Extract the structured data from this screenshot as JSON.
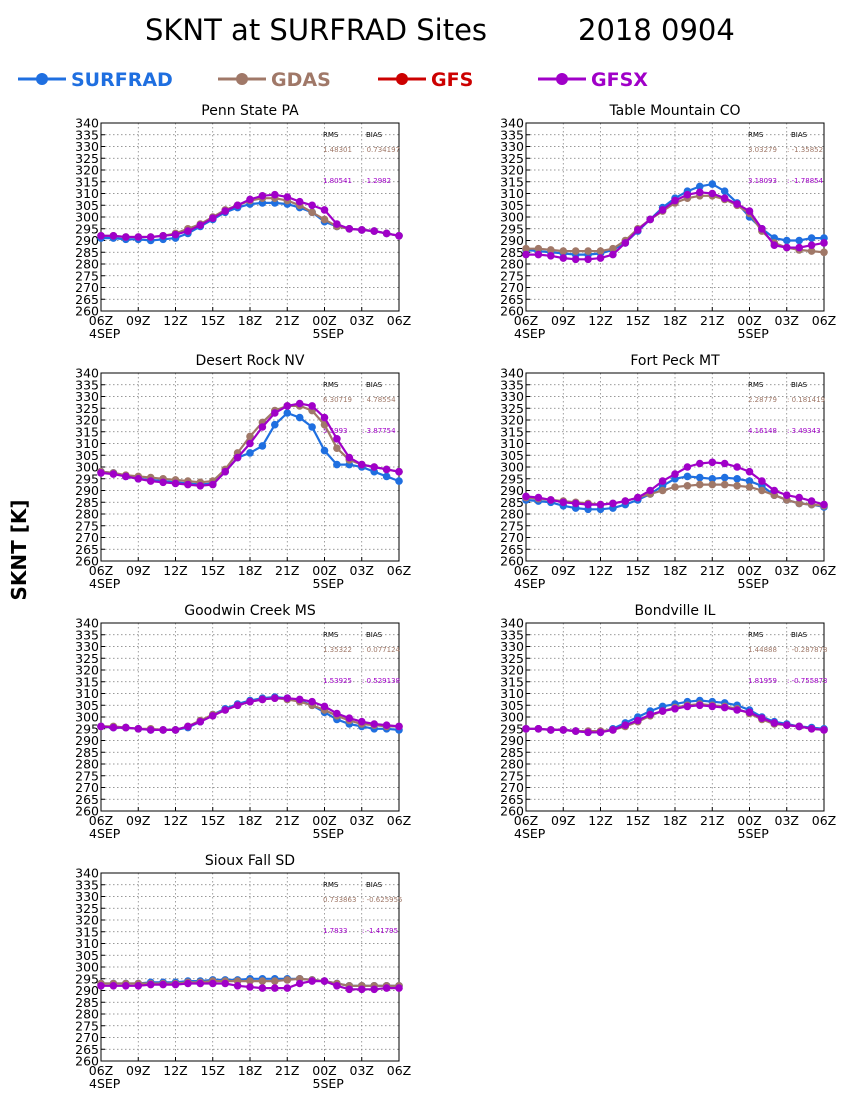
{
  "title": "SKNT at SURFRAD Sites",
  "date": "2018 0904",
  "ylabel": "SKNT [K]",
  "legend": [
    {
      "name": "SURFRAD",
      "color": "#1f6fe0"
    },
    {
      "name": "GDAS",
      "color": "#a07868"
    },
    {
      "name": "GFS",
      "color": "#cc0000"
    },
    {
      "name": "GFSX",
      "color": "#a000c8"
    }
  ],
  "stats_header": {
    "rms": "RMS",
    "bias": "BIAS"
  },
  "chart_data": {
    "type": "line",
    "ylim": [
      260,
      340
    ],
    "yticks": [
      "260",
      "265",
      "270",
      "275",
      "280",
      "285",
      "290",
      "295",
      "300",
      "305",
      "310",
      "315",
      "320",
      "325",
      "330",
      "335",
      "340"
    ],
    "xticks": [
      "06Z",
      "09Z",
      "12Z",
      "15Z",
      "18Z",
      "21Z",
      "00Z",
      "03Z",
      "06Z"
    ],
    "xday_labels": [
      "4SEP",
      "5SEP"
    ],
    "grid": true,
    "x_hours": [
      0,
      1,
      2,
      3,
      4,
      5,
      6,
      7,
      8,
      9,
      10,
      11,
      12,
      13,
      14,
      15,
      16,
      17,
      18,
      19,
      20,
      21,
      22,
      23,
      24
    ],
    "panels": [
      {
        "title": "Penn State PA",
        "stats": [
          {
            "rms": "1.48301",
            "bias": "0.734197",
            "color": "#a07868"
          },
          {
            "rms": "1.80541",
            "bias": "1.2982",
            "color": "#a000c8"
          }
        ],
        "series": [
          {
            "name": "SURFRAD",
            "values": [
              291,
              291,
              290.5,
              290.5,
              290,
              290.5,
              291,
              293,
              296,
              299,
              302,
              304,
              305.5,
              306,
              306,
              305.5,
              304,
              302,
              298,
              296,
              295,
              294.5,
              294,
              293,
              292
            ]
          },
          {
            "name": "GDAS",
            "values": [
              292,
              292,
              291.5,
              291.5,
              291.5,
              292,
              293,
              295,
              297,
              300,
              303,
              305,
              307,
              308,
              308,
              307,
              305,
              302,
              299,
              296,
              295,
              294.5,
              294,
              293,
              292
            ]
          },
          {
            "name": "GFSX",
            "values": [
              292,
              292,
              291.5,
              291.5,
              291.5,
              292,
              292.5,
              294,
              296.5,
              299.5,
              302.5,
              305,
              307.5,
              309,
              309.5,
              308.5,
              306.5,
              305,
              303,
              297,
              295,
              294.5,
              294,
              293,
              292
            ]
          }
        ]
      },
      {
        "title": "Table Mountain CO",
        "stats": [
          {
            "rms": "3.03279",
            "bias": "-1.35852",
            "color": "#a07868"
          },
          {
            "rms": "3.18093",
            "bias": "-1.78854",
            "color": "#a000c8"
          }
        ],
        "series": [
          {
            "name": "SURFRAD",
            "values": [
              286,
              285.5,
              285,
              284.5,
              284,
              284,
              284.5,
              286,
              289,
              294,
              299,
              304,
              308,
              311,
              313,
              314,
              311,
              306,
              300,
              295,
              291,
              290,
              290,
              291,
              291
            ]
          },
          {
            "name": "GDAS",
            "values": [
              286.5,
              286.5,
              286,
              285.5,
              285.5,
              285.5,
              285.5,
              286.5,
              290,
              295,
              299,
              302.5,
              306,
              308,
              309,
              309,
              307.5,
              305,
              301.5,
              294,
              289,
              287,
              286,
              285.5,
              285
            ]
          },
          {
            "name": "GFSX",
            "values": [
              284,
              284,
              283.5,
              282.5,
              282,
              282,
              282.5,
              284,
              289,
              294.5,
              299,
              303,
              307,
              309.5,
              310.5,
              310,
              308,
              305.5,
              302.5,
              295,
              288,
              287,
              287,
              288,
              289
            ]
          }
        ]
      },
      {
        "title": "Desert Rock NV",
        "stats": [
          {
            "rms": "6.30719",
            "bias": "4.78554",
            "color": "#a07868"
          },
          {
            "rms": "5.5993",
            "bias": "3.87754",
            "color": "#a000c8"
          }
        ],
        "series": [
          {
            "name": "SURFRAD",
            "values": [
              298,
              297.5,
              296,
              295,
              294.5,
              294,
              293.5,
              293,
              292.5,
              293,
              298,
              304,
              306,
              309,
              318,
              323,
              321,
              317,
              307,
              301,
              301,
              300,
              298,
              296,
              294
            ]
          },
          {
            "name": "GDAS",
            "values": [
              298,
              297.5,
              296.5,
              296,
              295.5,
              295,
              294.5,
              294,
              293.5,
              294,
              299,
              306,
              313,
              319,
              324,
              326,
              326,
              324,
              318,
              308,
              303,
              301,
              300,
              299,
              298
            ]
          },
          {
            "name": "GFSX",
            "values": [
              297.5,
              297,
              296,
              295,
              294,
              293.5,
              293,
              292.5,
              292,
              292.5,
              298,
              304,
              310,
              317,
              323,
              326,
              327,
              326,
              321,
              312,
              304,
              301,
              300,
              299,
              298
            ]
          }
        ]
      },
      {
        "title": "Fort Peck MT",
        "stats": [
          {
            "rms": "2.28779",
            "bias": "0.181419",
            "color": "#a07868"
          },
          {
            "rms": "4.16148",
            "bias": "3.49343",
            "color": "#a000c8"
          }
        ],
        "series": [
          {
            "name": "SURFRAD",
            "values": [
              286,
              285.5,
              285,
              283.5,
              282.5,
              282,
              282,
              282.5,
              284,
              286,
              288.5,
              292,
              295,
              296,
              295.5,
              295,
              295.5,
              295,
              294,
              292,
              288,
              286,
              284.5,
              284,
              283
            ]
          },
          {
            "name": "GDAS",
            "values": [
              287,
              286.5,
              286,
              285.5,
              285,
              284.5,
              284,
              284.5,
              285.5,
              287,
              288.5,
              290,
              291.5,
              292,
              292.5,
              292.5,
              292.5,
              292,
              291.5,
              290,
              288,
              286,
              284.5,
              284,
              283.5
            ]
          },
          {
            "name": "GFSX",
            "values": [
              287.5,
              287,
              286,
              285,
              284.5,
              284,
              284,
              284.5,
              285.5,
              287,
              290,
              294,
              297,
              300,
              301.5,
              302,
              301.5,
              300,
              298,
              294,
              290,
              288,
              287,
              285.5,
              284
            ]
          }
        ]
      },
      {
        "title": "Goodwin Creek MS",
        "stats": [
          {
            "rms": "1.35322",
            "bias": "0.077124",
            "color": "#a07868"
          },
          {
            "rms": "1.53925",
            "bias": "0.529138",
            "color": "#a000c8"
          }
        ],
        "series": [
          {
            "name": "SURFRAD",
            "values": [
              296,
              295.5,
              295.5,
              295,
              294.5,
              294.5,
              294.5,
              295.5,
              298,
              301,
              303.5,
              305.5,
              307,
              308,
              308.5,
              308,
              307,
              305,
              302,
              299,
              297,
              296,
              295,
              295,
              294.5
            ]
          },
          {
            "name": "GDAS",
            "values": [
              296,
              296,
              295.5,
              295,
              295,
              294.5,
              294.5,
              296,
              298.5,
              301,
              303,
              305,
              306.5,
              307.5,
              308,
              307.5,
              306.5,
              305,
              303,
              300.5,
              298.5,
              297,
              296.5,
              296,
              296
            ]
          },
          {
            "name": "GFSX",
            "values": [
              296,
              295.5,
              295.5,
              295,
              294.5,
              294.5,
              294.5,
              296,
              298,
              300.5,
              303,
              305,
              306.5,
              307.5,
              308,
              308,
              307.5,
              306.5,
              304.5,
              301.5,
              299.5,
              298,
              297,
              296.5,
              296
            ]
          }
        ]
      },
      {
        "title": "Bondville IL",
        "stats": [
          {
            "rms": "1.44888",
            "bias": "-0.287878",
            "color": "#a07868"
          },
          {
            "rms": "1.81959",
            "bias": "-0.755873",
            "color": "#a000c8"
          }
        ],
        "series": [
          {
            "name": "SURFRAD",
            "values": [
              295,
              295,
              294.5,
              294.5,
              294,
              293.5,
              293.5,
              295,
              297.5,
              300,
              302.5,
              304.5,
              305.5,
              306.5,
              307,
              306.5,
              306,
              305,
              303,
              300,
              298,
              297,
              296,
              295.5,
              295
            ]
          },
          {
            "name": "GDAS",
            "values": [
              295,
              295,
              294.5,
              294.5,
              294,
              294,
              294,
              294.5,
              296,
              298,
              300.5,
              302.5,
              304,
              305,
              305.5,
              305,
              304.5,
              303.5,
              301.5,
              299,
              297,
              296.5,
              296,
              295,
              294.5
            ]
          },
          {
            "name": "GFSX",
            "values": [
              295,
              295,
              294.5,
              294.5,
              294,
              293.5,
              293.5,
              294.5,
              296.5,
              298.5,
              301,
              302.5,
              303.5,
              304.5,
              305,
              304.5,
              304,
              303,
              302,
              299.5,
              297.5,
              296.5,
              296,
              295,
              294.5
            ]
          }
        ]
      },
      {
        "title": "Sioux Fall SD",
        "stats": [
          {
            "rms": "0.733863",
            "bias": "-0.625955",
            "color": "#a07868"
          },
          {
            "rms": "1.7833",
            "bias": "-1.41795",
            "color": "#a000c8"
          }
        ],
        "series": [
          {
            "name": "SURFRAD",
            "values": [
              293,
              293,
              293,
              293,
              293.5,
              293.5,
              293.5,
              294,
              294,
              294.5,
              294.5,
              294.5,
              295,
              295,
              295,
              295,
              295,
              294.5,
              294,
              293,
              292,
              292,
              292,
              292,
              292
            ]
          },
          {
            "name": "GDAS",
            "values": [
              293,
              293,
              293,
              293,
              293,
              293,
              293,
              293.5,
              293.5,
              294,
              294,
              294,
              294,
              294,
              294,
              294.5,
              295,
              294.5,
              294,
              293,
              292,
              292,
              292,
              292,
              292
            ]
          },
          {
            "name": "GFSX",
            "values": [
              292,
              292,
              292,
              292,
              292.5,
              292.5,
              292.5,
              293,
              293,
              293,
              293,
              292,
              291.5,
              291,
              291,
              291,
              293,
              294,
              294,
              292,
              290.5,
              290.5,
              290.5,
              291,
              291
            ]
          }
        ]
      }
    ]
  }
}
